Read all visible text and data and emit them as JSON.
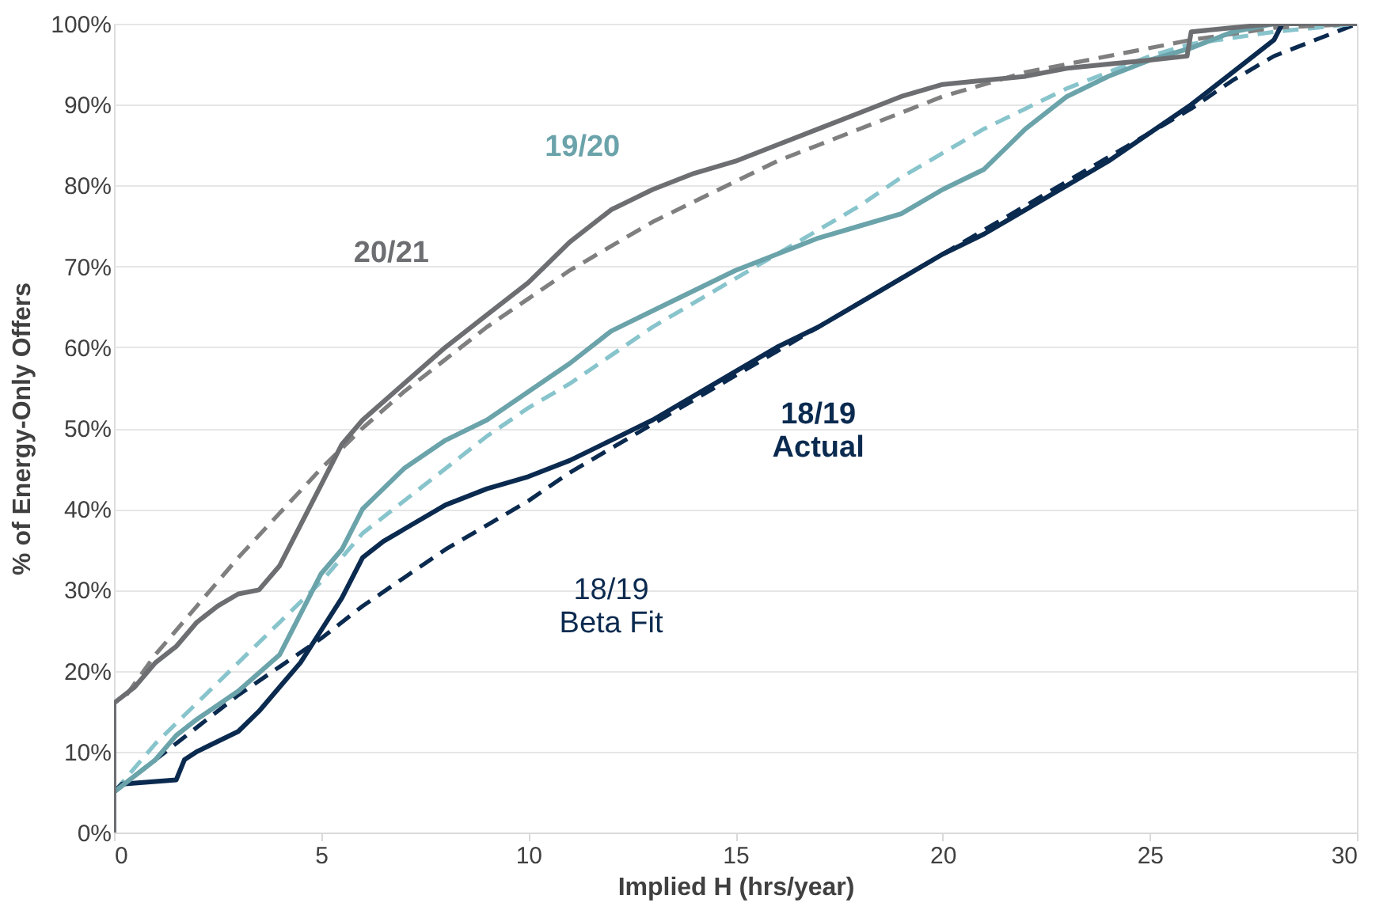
{
  "chart_data": {
    "type": "line",
    "xlabel": "Implied H (hrs/year)",
    "ylabel": "% of Energy-Only Offers",
    "xlim": [
      0,
      30
    ],
    "xticks": [
      0,
      5,
      10,
      15,
      20,
      25,
      30
    ],
    "ylim": [
      0,
      100
    ],
    "yticks": [
      {
        "value": 0,
        "label": "0%"
      },
      {
        "value": 10,
        "label": "10%"
      },
      {
        "value": 20,
        "label": "20%"
      },
      {
        "value": 30,
        "label": "30%"
      },
      {
        "value": 40,
        "label": "40%"
      },
      {
        "value": 50,
        "label": "50%"
      },
      {
        "value": 60,
        "label": "60%"
      },
      {
        "value": 70,
        "label": "70%"
      },
      {
        "value": 80,
        "label": "80%"
      },
      {
        "value": 90,
        "label": "90%"
      },
      {
        "value": 100,
        "label": "100%"
      }
    ],
    "grid": "y",
    "legend": false,
    "marker": "none",
    "series": [
      {
        "name": "18/19\nBeta Fit",
        "color": "#0b2a4f",
        "line_style": "dashed",
        "x": [
          0,
          1,
          2,
          3,
          4,
          5,
          6,
          7,
          8,
          9,
          10,
          11,
          12,
          13,
          14,
          15,
          16,
          17,
          18,
          19,
          20,
          21,
          22,
          23,
          24,
          25,
          26,
          27,
          28,
          29,
          30
        ],
        "values": [
          5,
          9,
          13,
          17,
          20.5,
          24,
          28,
          31.5,
          35,
          38,
          41,
          44.5,
          47.5,
          50.5,
          53.5,
          56.5,
          59.5,
          62.5,
          65.5,
          68.5,
          71.5,
          74.5,
          77.5,
          80.5,
          83.5,
          86.5,
          89.5,
          93,
          96,
          98,
          100
        ]
      },
      {
        "color": "#88c4cc",
        "line_style": "dashed",
        "x": [
          0,
          1,
          2,
          3,
          4,
          5,
          6,
          7,
          8,
          9,
          10,
          11,
          12,
          13,
          14,
          15,
          16,
          17,
          18,
          19,
          20,
          21,
          22,
          23,
          24,
          25,
          26,
          28,
          30
        ],
        "values": [
          5,
          11,
          16,
          21,
          26,
          31,
          37,
          41,
          45,
          49,
          52.5,
          55.5,
          59,
          62.5,
          65.5,
          68.5,
          71.5,
          74.5,
          77.5,
          81,
          84,
          87,
          89.5,
          92,
          94,
          96,
          97.5,
          99,
          100
        ]
      },
      {
        "color": "#7f7f7f",
        "line_style": "dashed",
        "x": [
          0.3,
          1,
          2,
          3,
          4,
          5,
          6,
          7,
          8,
          9,
          10,
          11,
          12,
          13,
          14,
          15,
          16,
          17,
          18,
          19,
          20,
          22,
          24,
          26,
          28,
          30
        ],
        "values": [
          17,
          22,
          28,
          34,
          39.5,
          45,
          50,
          54.5,
          58.5,
          62.5,
          66,
          69.5,
          72.5,
          75.5,
          78,
          80.5,
          83,
          85,
          87,
          89,
          91,
          94,
          96,
          98,
          99.5,
          100
        ]
      },
      {
        "name": "18/19\nActual",
        "color": "#0b2a4f",
        "line_style": "solid",
        "x": [
          0,
          0.2,
          1.5,
          1.7,
          2,
          3,
          3.5,
          4,
          4.5,
          5,
          5.5,
          6,
          6.5,
          7,
          8,
          9,
          10,
          11,
          12,
          13,
          14,
          15,
          16,
          17,
          18,
          19,
          20,
          21,
          22,
          23,
          24,
          25,
          26,
          27,
          28,
          28.2,
          30
        ],
        "values": [
          5,
          6,
          6.5,
          9,
          10,
          12.5,
          15,
          18,
          21,
          25,
          29,
          34,
          36,
          37.5,
          40.5,
          42.5,
          44,
          46,
          48.5,
          51,
          54,
          57,
          60,
          62.5,
          65.5,
          68.5,
          71.5,
          74,
          77,
          80,
          83,
          86.5,
          90,
          94,
          98,
          100,
          100
        ]
      },
      {
        "name": "19/20",
        "color": "#6ba3aa",
        "line_style": "solid",
        "x": [
          0,
          0.5,
          1,
          1.5,
          2,
          3,
          4,
          5,
          5.5,
          6,
          7,
          8,
          9,
          10,
          11,
          12,
          13,
          14,
          15,
          16,
          17,
          18,
          19,
          20,
          21,
          22,
          23,
          24,
          25,
          26,
          27,
          28,
          30
        ],
        "values": [
          5,
          7,
          9,
          12,
          14,
          17.5,
          22,
          32,
          35,
          40,
          45,
          48.5,
          51,
          54.5,
          58,
          62,
          64.5,
          67,
          69.5,
          71.5,
          73.5,
          75,
          76.5,
          79.5,
          82,
          87,
          91,
          93.5,
          95.5,
          97,
          99,
          100,
          100
        ]
      },
      {
        "name": "20/21",
        "color": "#6d6e71",
        "line_style": "solid",
        "x": [
          0,
          0,
          0.5,
          1,
          1.5,
          2,
          2.5,
          3,
          3.5,
          4,
          4.5,
          5,
          5.5,
          6,
          7,
          8,
          9,
          10,
          11,
          12,
          13,
          14,
          15,
          16,
          17,
          18,
          19,
          20,
          21,
          22,
          23,
          24,
          25,
          25.9,
          26,
          27,
          28,
          30
        ],
        "values": [
          0,
          16,
          18,
          21,
          23,
          26,
          28,
          29.5,
          30,
          33,
          38,
          43,
          48,
          51,
          55.5,
          60,
          64,
          68,
          73,
          77,
          79.5,
          81.5,
          83,
          85,
          87,
          89,
          91,
          92.5,
          93,
          93.5,
          94.5,
          95,
          95.5,
          96,
          99,
          99.5,
          100,
          100
        ]
      }
    ]
  }
}
